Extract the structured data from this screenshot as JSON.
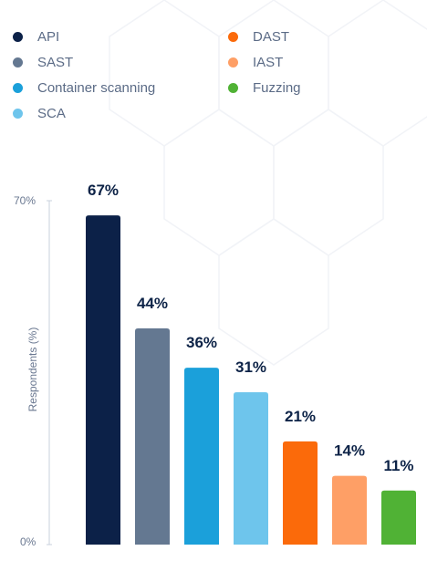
{
  "chart_data": {
    "type": "bar",
    "categories": [
      "API",
      "SAST",
      "Container scanning",
      "SCA",
      "DAST",
      "IAST",
      "Fuzzing"
    ],
    "values": [
      67,
      44,
      36,
      31,
      21,
      14,
      11
    ],
    "value_labels": [
      "67%",
      "44%",
      "36%",
      "31%",
      "21%",
      "14%",
      "11%"
    ],
    "colors": [
      "#0c2148",
      "#647891",
      "#1ba0da",
      "#6ec5ec",
      "#fb6a0a",
      "#fe9f66",
      "#50b235"
    ],
    "ylabel": "Respondents (%)",
    "ylim": [
      0,
      70
    ],
    "yticks": [
      "0%",
      "70%"
    ],
    "legend_position": "top",
    "grid": false
  }
}
